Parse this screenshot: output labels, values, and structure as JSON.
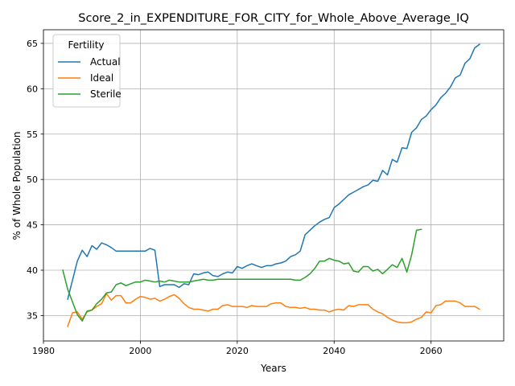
{
  "chart_data": {
    "type": "line",
    "title": "Score_2_in_EXPENDITURE_FOR_CITY_for_Whole_Above_Average_IQ",
    "xlabel": "Years",
    "ylabel": "% of Whole Population",
    "xlim": [
      1980,
      2075
    ],
    "ylim": [
      32.2,
      66.5
    ],
    "xticks": [
      1980,
      2000,
      2020,
      2040,
      2060
    ],
    "yticks": [
      35,
      40,
      45,
      50,
      55,
      60,
      65
    ],
    "grid": true,
    "legend": {
      "title": "Fertility",
      "position": "top-left"
    },
    "colors": {
      "Actual": "#1f77b4",
      "Ideal": "#ff7f0e",
      "Sterile": "#2ca02c"
    },
    "series": [
      {
        "name": "Actual",
        "x": [
          1985,
          1986,
          1987,
          1988,
          1989,
          1990,
          1991,
          1992,
          1993,
          1994,
          1995,
          1996,
          1997,
          1998,
          1999,
          2000,
          2001,
          2002,
          2003,
          2004,
          2005,
          2006,
          2007,
          2008,
          2009,
          2010,
          2011,
          2012,
          2013,
          2014,
          2015,
          2016,
          2017,
          2018,
          2019,
          2020,
          2021,
          2022,
          2023,
          2024,
          2025,
          2026,
          2027,
          2028,
          2029,
          2030,
          2031,
          2032,
          2033,
          2034,
          2035,
          2036,
          2037,
          2038,
          2039,
          2040,
          2041,
          2042,
          2043,
          2044,
          2045,
          2046,
          2047,
          2048,
          2049,
          2050,
          2051,
          2052,
          2053,
          2054,
          2055,
          2056,
          2057,
          2058,
          2059,
          2060,
          2061,
          2062,
          2063,
          2064,
          2065,
          2066,
          2067,
          2068,
          2069,
          2070
        ],
        "values": [
          36.8,
          38.9,
          41.0,
          42.2,
          41.5,
          42.7,
          42.3,
          43.0,
          42.8,
          42.5,
          42.1,
          42.1,
          42.1,
          42.1,
          42.1,
          42.1,
          42.1,
          42.4,
          42.2,
          38.2,
          38.4,
          38.4,
          38.4,
          38.1,
          38.5,
          38.4,
          39.6,
          39.5,
          39.7,
          39.8,
          39.4,
          39.3,
          39.6,
          39.8,
          39.7,
          40.4,
          40.2,
          40.5,
          40.7,
          40.5,
          40.3,
          40.5,
          40.5,
          40.7,
          40.8,
          41.0,
          41.5,
          41.7,
          42.1,
          43.9,
          44.4,
          44.9,
          45.3,
          45.6,
          45.8,
          46.9,
          47.3,
          47.8,
          48.3,
          48.6,
          48.9,
          49.2,
          49.4,
          49.9,
          49.8,
          51.0,
          50.5,
          52.2,
          51.9,
          53.5,
          53.4,
          55.2,
          55.7,
          56.6,
          57.0,
          57.7,
          58.2,
          59.0,
          59.5,
          60.2,
          61.2,
          61.5,
          62.8,
          63.3,
          64.5,
          64.9
        ]
      },
      {
        "name": "Ideal",
        "x": [
          1985,
          1986,
          1987,
          1988,
          1989,
          1990,
          1991,
          1992,
          1993,
          1994,
          1995,
          1996,
          1997,
          1998,
          1999,
          2000,
          2001,
          2002,
          2003,
          2004,
          2005,
          2006,
          2007,
          2008,
          2009,
          2010,
          2011,
          2012,
          2013,
          2014,
          2015,
          2016,
          2017,
          2018,
          2019,
          2020,
          2021,
          2022,
          2023,
          2024,
          2025,
          2026,
          2027,
          2028,
          2029,
          2030,
          2031,
          2032,
          2033,
          2034,
          2035,
          2036,
          2037,
          2038,
          2039,
          2040,
          2041,
          2042,
          2043,
          2044,
          2045,
          2046,
          2047,
          2048,
          2049,
          2050,
          2051,
          2052,
          2053,
          2054,
          2055,
          2056,
          2057,
          2058,
          2059,
          2060,
          2061,
          2062,
          2063,
          2064,
          2065,
          2066,
          2067,
          2068,
          2069,
          2070
        ],
        "values": [
          33.8,
          35.3,
          35.4,
          34.6,
          35.4,
          35.6,
          36.0,
          36.3,
          37.4,
          36.7,
          37.2,
          37.2,
          36.4,
          36.4,
          36.8,
          37.1,
          37.0,
          36.8,
          36.9,
          36.6,
          36.8,
          37.1,
          37.3,
          36.9,
          36.3,
          35.9,
          35.7,
          35.7,
          35.6,
          35.5,
          35.7,
          35.7,
          36.1,
          36.2,
          36.0,
          36.0,
          36.0,
          35.9,
          36.1,
          36.0,
          36.0,
          36.0,
          36.3,
          36.4,
          36.4,
          36.0,
          35.9,
          35.9,
          35.8,
          35.9,
          35.7,
          35.7,
          35.6,
          35.6,
          35.4,
          35.6,
          35.7,
          35.6,
          36.1,
          36.0,
          36.2,
          36.2,
          36.2,
          35.7,
          35.4,
          35.2,
          34.8,
          34.5,
          34.3,
          34.2,
          34.2,
          34.3,
          34.6,
          34.8,
          35.4,
          35.3,
          36.1,
          36.2,
          36.6,
          36.6,
          36.6,
          36.4,
          36.0,
          36.0,
          36.0,
          35.7
        ]
      },
      {
        "name": "Sterile",
        "x": [
          1984,
          1985,
          1986,
          1987,
          1988,
          1989,
          1990,
          1991,
          1992,
          1993,
          1994,
          1995,
          1996,
          1997,
          1998,
          1999,
          2000,
          2001,
          2002,
          2003,
          2004,
          2005,
          2006,
          2007,
          2008,
          2009,
          2010,
          2011,
          2012,
          2013,
          2014,
          2015,
          2016,
          2017,
          2018,
          2019,
          2020,
          2021,
          2022,
          2023,
          2024,
          2025,
          2026,
          2027,
          2028,
          2029,
          2030,
          2031,
          2032,
          2033,
          2034,
          2035,
          2036,
          2037,
          2038,
          2039,
          2040,
          2041,
          2042,
          2043,
          2044,
          2045,
          2046,
          2047,
          2048,
          2049,
          2050,
          2051,
          2052,
          2053,
          2054,
          2055,
          2056,
          2057,
          2058
        ],
        "values": [
          40.0,
          37.9,
          36.5,
          35.1,
          34.4,
          35.5,
          35.6,
          36.3,
          36.8,
          37.5,
          37.6,
          38.4,
          38.6,
          38.3,
          38.5,
          38.7,
          38.7,
          38.9,
          38.8,
          38.7,
          38.8,
          38.7,
          38.9,
          38.8,
          38.7,
          38.7,
          38.7,
          38.8,
          38.9,
          39.0,
          38.9,
          38.9,
          39.0,
          39.0,
          39.0,
          39.0,
          39.0,
          39.0,
          39.0,
          39.0,
          39.0,
          39.0,
          39.0,
          39.0,
          39.0,
          39.0,
          39.0,
          39.0,
          38.9,
          38.9,
          39.2,
          39.6,
          40.2,
          41.0,
          41.0,
          41.3,
          41.1,
          41.0,
          40.7,
          40.8,
          39.9,
          39.8,
          40.4,
          40.4,
          39.9,
          40.1,
          39.6,
          40.1,
          40.6,
          40.3,
          41.3,
          39.8,
          41.7,
          44.4,
          44.5
        ]
      }
    ]
  }
}
